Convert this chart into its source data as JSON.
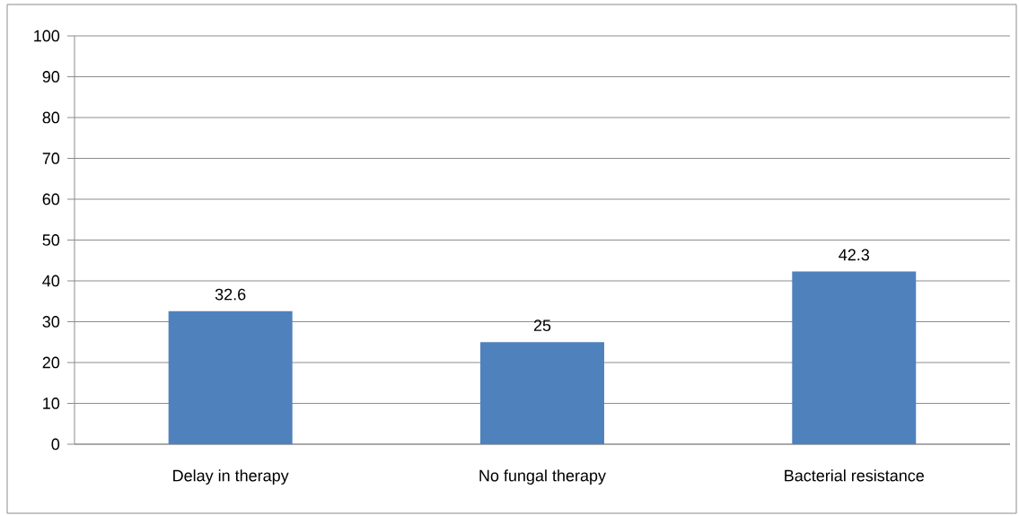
{
  "chart_data": {
    "type": "bar",
    "categories": [
      "Delay in therapy",
      "No fungal therapy",
      "Bacterial resistance"
    ],
    "values": [
      32.6,
      25,
      42.3
    ],
    "color": "#4f81bd",
    "ylim": [
      0,
      100
    ],
    "yticks": [
      0,
      10,
      20,
      30,
      40,
      50,
      60,
      70,
      80,
      90,
      100
    ],
    "grid": "y",
    "data_labels": true
  }
}
